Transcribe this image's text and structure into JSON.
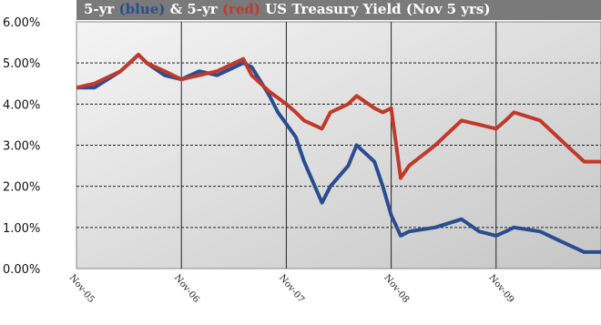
{
  "chart_data": {
    "type": "line",
    "title_segments": [
      {
        "text": "5-yr ",
        "color": "#ffffff"
      },
      {
        "text": "(blue)",
        "color": "#2a4d8f"
      },
      {
        "text": " & 5-yr ",
        "color": "#ffffff"
      },
      {
        "text": "(red)",
        "color": "#c0392b"
      },
      {
        "text": " US Treasury Yield (Nov 5 yrs)",
        "color": "#ffffff"
      }
    ],
    "ylim": [
      0,
      6
    ],
    "yticks": [
      {
        "v": 0,
        "label": "0.00%"
      },
      {
        "v": 1,
        "label": "1.00%"
      },
      {
        "v": 2,
        "label": "2.00%"
      },
      {
        "v": 3,
        "label": "3.00%"
      },
      {
        "v": 4,
        "label": "4.00%"
      },
      {
        "v": 5,
        "label": "5.00%"
      },
      {
        "v": 6,
        "label": "6.00%"
      }
    ],
    "xlim": [
      2005.83,
      2010.83
    ],
    "xticks": [
      {
        "v": 2005.83,
        "label": "Nov-05"
      },
      {
        "v": 2006.83,
        "label": "Nov-06"
      },
      {
        "v": 2007.83,
        "label": "Nov-07"
      },
      {
        "v": 2008.83,
        "label": "Nov-08"
      },
      {
        "v": 2009.83,
        "label": "Nov-09"
      }
    ],
    "grid": true,
    "colors": {
      "plot_bg_start": "#f4f4f4",
      "plot_bg_end": "#c6c6c6",
      "title_bg": "#7a7a7a",
      "grid": "#222222"
    },
    "series": [
      {
        "color": "#2a4d8f",
        "x": [
          2005.83,
          2006.0,
          2006.25,
          2006.42,
          2006.5,
          2006.67,
          2006.83,
          2007.0,
          2007.17,
          2007.42,
          2007.5,
          2007.67,
          2007.75,
          2007.92,
          2008.0,
          2008.17,
          2008.25,
          2008.42,
          2008.5,
          2008.67,
          2008.75,
          2008.83,
          2008.92,
          2009.0,
          2009.25,
          2009.5,
          2009.67,
          2009.83,
          2009.92,
          2010.0,
          2010.25,
          2010.5,
          2010.67,
          2010.83
        ],
        "y": [
          4.4,
          4.4,
          4.8,
          5.2,
          5.0,
          4.7,
          4.6,
          4.8,
          4.7,
          5.0,
          4.9,
          4.2,
          3.8,
          3.2,
          2.6,
          1.6,
          2.0,
          2.5,
          3.0,
          2.6,
          2.0,
          1.3,
          0.8,
          0.9,
          1.0,
          1.2,
          0.9,
          0.8,
          0.9,
          1.0,
          0.9,
          0.6,
          0.4,
          0.4
        ]
      },
      {
        "color": "#c0392b",
        "x": [
          2005.83,
          2006.0,
          2006.25,
          2006.42,
          2006.5,
          2006.67,
          2006.83,
          2007.0,
          2007.17,
          2007.42,
          2007.5,
          2007.67,
          2007.83,
          2007.92,
          2008.0,
          2008.17,
          2008.25,
          2008.42,
          2008.5,
          2008.67,
          2008.75,
          2008.83,
          2008.92,
          2009.0,
          2009.25,
          2009.5,
          2009.67,
          2009.83,
          2009.92,
          2010.0,
          2010.25,
          2010.5,
          2010.67,
          2010.83
        ],
        "y": [
          4.4,
          4.5,
          4.8,
          5.2,
          5.0,
          4.8,
          4.6,
          4.7,
          4.8,
          5.1,
          4.7,
          4.3,
          4.0,
          3.8,
          3.6,
          3.4,
          3.8,
          4.0,
          4.2,
          3.9,
          3.8,
          3.9,
          2.2,
          2.5,
          3.0,
          3.6,
          3.5,
          3.4,
          3.6,
          3.8,
          3.6,
          3.0,
          2.6,
          2.6
        ]
      }
    ]
  }
}
